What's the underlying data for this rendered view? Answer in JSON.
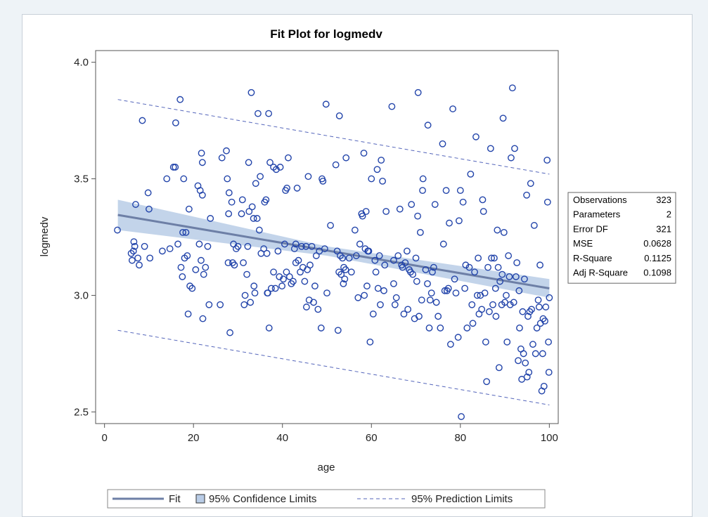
{
  "chart_data": {
    "type": "scatter",
    "title": "Fit Plot for logmedv",
    "xlabel": "age",
    "ylabel": "logmedv",
    "xlim": [
      -2,
      102
    ],
    "ylim": [
      2.45,
      4.05
    ],
    "x_ticks": [
      0,
      20,
      40,
      60,
      80,
      100
    ],
    "y_ticks": [
      2.5,
      3.0,
      3.5,
      4.0
    ],
    "x_tick_labels": [
      "0",
      "20",
      "40",
      "60",
      "80",
      "100"
    ],
    "y_tick_labels": [
      "2.5",
      "3.0",
      "3.5",
      "4.0"
    ],
    "grid": false,
    "colors": {
      "points": "#2244aa",
      "fit": "#6d7fa6",
      "confidence_band": "#b9cce6",
      "prediction": "#5566bb"
    },
    "fit_line": {
      "x": [
        3,
        100
      ],
      "y": [
        3.345,
        3.03
      ]
    },
    "confidence_band": {
      "x": [
        3,
        50,
        100
      ],
      "lower": [
        3.28,
        3.17,
        2.99
      ],
      "upper": [
        3.41,
        3.21,
        3.07
      ]
    },
    "prediction_limits": {
      "x": [
        3,
        100
      ],
      "lower": [
        2.85,
        2.53
      ],
      "upper": [
        3.84,
        3.52
      ]
    },
    "points": [
      [
        2.9,
        3.28
      ],
      [
        6,
        3.18
      ],
      [
        6.2,
        3.15
      ],
      [
        6.5,
        3.19
      ],
      [
        6.6,
        3.23
      ],
      [
        6.8,
        3.21
      ],
      [
        7,
        3.39
      ],
      [
        7.5,
        3.16
      ],
      [
        7.8,
        3.13
      ],
      [
        8.5,
        3.75
      ],
      [
        9,
        3.21
      ],
      [
        9.8,
        3.44
      ],
      [
        10,
        3.37
      ],
      [
        10.2,
        3.16
      ],
      [
        13,
        3.19
      ],
      [
        14,
        3.5
      ],
      [
        14.7,
        3.2
      ],
      [
        15.5,
        3.55
      ],
      [
        15.9,
        3.55
      ],
      [
        16,
        3.74
      ],
      [
        16.5,
        3.22
      ],
      [
        17,
        3.84
      ],
      [
        17.2,
        3.12
      ],
      [
        17.5,
        3.08
      ],
      [
        17.6,
        3.27
      ],
      [
        17.8,
        3.5
      ],
      [
        18,
        3.16
      ],
      [
        18.3,
        3.27
      ],
      [
        18.6,
        3.17
      ],
      [
        18.8,
        2.92
      ],
      [
        19,
        3.37
      ],
      [
        19.2,
        3.04
      ],
      [
        19.7,
        3.03
      ],
      [
        20.5,
        3.11
      ],
      [
        21,
        3.47
      ],
      [
        21.3,
        3.22
      ],
      [
        21.5,
        3.45
      ],
      [
        21.7,
        3.15
      ],
      [
        21.8,
        3.61
      ],
      [
        22,
        3.57
      ],
      [
        22,
        3.43
      ],
      [
        22.1,
        2.9
      ],
      [
        22.3,
        3.09
      ],
      [
        22.7,
        3.12
      ],
      [
        23.2,
        3.21
      ],
      [
        23.5,
        2.96
      ],
      [
        23.8,
        3.33
      ],
      [
        26,
        2.96
      ],
      [
        26.4,
        3.59
      ],
      [
        27.4,
        3.62
      ],
      [
        27.6,
        3.5
      ],
      [
        27.8,
        3.14
      ],
      [
        27.9,
        3.35
      ],
      [
        28,
        3.44
      ],
      [
        28.2,
        2.84
      ],
      [
        28.6,
        3.4
      ],
      [
        28.8,
        3.14
      ],
      [
        29,
        3.22
      ],
      [
        29.2,
        3.13
      ],
      [
        29.6,
        3.2
      ],
      [
        30,
        3.21
      ],
      [
        30.8,
        3.35
      ],
      [
        31,
        3.41
      ],
      [
        31.2,
        3.14
      ],
      [
        31.4,
        2.96
      ],
      [
        31.6,
        3.0
      ],
      [
        32,
        3.09
      ],
      [
        32.2,
        3.21
      ],
      [
        32.4,
        3.57
      ],
      [
        32.5,
        3.36
      ],
      [
        32.8,
        2.97
      ],
      [
        33,
        3.87
      ],
      [
        33.2,
        3.38
      ],
      [
        33.5,
        3.33
      ],
      [
        33.6,
        3.04
      ],
      [
        33.8,
        3.01
      ],
      [
        34,
        3.48
      ],
      [
        34.3,
        3.33
      ],
      [
        34.5,
        3.78
      ],
      [
        34.8,
        3.28
      ],
      [
        35,
        3.51
      ],
      [
        35.2,
        3.18
      ],
      [
        35.8,
        3.2
      ],
      [
        36,
        3.4
      ],
      [
        36.3,
        3.41
      ],
      [
        36.5,
        3.18
      ],
      [
        36.6,
        3.01
      ],
      [
        36.7,
        3.01
      ],
      [
        36.9,
        3.78
      ],
      [
        37,
        2.86
      ],
      [
        37.2,
        3.57
      ],
      [
        37.5,
        3.03
      ],
      [
        38,
        3.55
      ],
      [
        38,
        3.1
      ],
      [
        38.4,
        3.03
      ],
      [
        38.6,
        3.54
      ],
      [
        39,
        3.19
      ],
      [
        39.3,
        3.08
      ],
      [
        39.5,
        3.55
      ],
      [
        39.9,
        3.04
      ],
      [
        40.2,
        3.07
      ],
      [
        40.5,
        3.22
      ],
      [
        40.7,
        3.45
      ],
      [
        40.9,
        3.1
      ],
      [
        41,
        3.46
      ],
      [
        41.3,
        3.59
      ],
      [
        41.6,
        3.08
      ],
      [
        42,
        3.05
      ],
      [
        42.4,
        3.06
      ],
      [
        42.7,
        3.2
      ],
      [
        43,
        3.14
      ],
      [
        43,
        3.22
      ],
      [
        43.3,
        3.46
      ],
      [
        43.6,
        3.15
      ],
      [
        44,
        3.1
      ],
      [
        44.3,
        3.21
      ],
      [
        44.6,
        3.12
      ],
      [
        45,
        3.06
      ],
      [
        45.3,
        3.21
      ],
      [
        45.4,
        2.95
      ],
      [
        45.6,
        3.11
      ],
      [
        45.8,
        3.51
      ],
      [
        46,
        2.98
      ],
      [
        46.2,
        3.13
      ],
      [
        46.6,
        3.21
      ],
      [
        47,
        2.97
      ],
      [
        47.3,
        3.04
      ],
      [
        47.6,
        3.17
      ],
      [
        48,
        2.94
      ],
      [
        48.3,
        3.19
      ],
      [
        48.7,
        2.86
      ],
      [
        48.9,
        3.5
      ],
      [
        49.1,
        3.49
      ],
      [
        49.5,
        3.2
      ],
      [
        49.8,
        3.82
      ],
      [
        50,
        3.01
      ],
      [
        50.8,
        3.3
      ],
      [
        52,
        3.56
      ],
      [
        52.3,
        3.19
      ],
      [
        52.5,
        2.85
      ],
      [
        52.7,
        3.1
      ],
      [
        52.8,
        3.77
      ],
      [
        53,
        3.17
      ],
      [
        53.2,
        3.09
      ],
      [
        53.5,
        3.16
      ],
      [
        53.7,
        3.05
      ],
      [
        53.8,
        3.12
      ],
      [
        54,
        3.07
      ],
      [
        54.2,
        3.11
      ],
      [
        54.3,
        3.59
      ],
      [
        55,
        3.16
      ],
      [
        55.5,
        3.1
      ],
      [
        56.3,
        3.28
      ],
      [
        56.6,
        3.17
      ],
      [
        57,
        2.99
      ],
      [
        57.4,
        3.22
      ],
      [
        57.8,
        3.35
      ],
      [
        58,
        3.34
      ],
      [
        58.3,
        3.61
      ],
      [
        58.4,
        3.0
      ],
      [
        58.6,
        3.2
      ],
      [
        58.8,
        3.36
      ],
      [
        59,
        3.04
      ],
      [
        59.2,
        3.19
      ],
      [
        59.4,
        3.19
      ],
      [
        59.7,
        2.8
      ],
      [
        60,
        3.5
      ],
      [
        60.4,
        2.92
      ],
      [
        60.8,
        3.15
      ],
      [
        61,
        3.1
      ],
      [
        61.3,
        3.54
      ],
      [
        61.5,
        3.03
      ],
      [
        61.8,
        3.17
      ],
      [
        62,
        2.96
      ],
      [
        62.2,
        3.58
      ],
      [
        62.5,
        3.49
      ],
      [
        62.8,
        3.02
      ],
      [
        63,
        3.13
      ],
      [
        63.3,
        3.36
      ],
      [
        64.6,
        3.81
      ],
      [
        65,
        3.15
      ],
      [
        65,
        3.05
      ],
      [
        65.3,
        2.96
      ],
      [
        65.6,
        2.99
      ],
      [
        66,
        3.17
      ],
      [
        66.4,
        3.37
      ],
      [
        66.8,
        3.13
      ],
      [
        67,
        3.12
      ],
      [
        67.3,
        2.92
      ],
      [
        67.6,
        3.14
      ],
      [
        68,
        3.19
      ],
      [
        68.2,
        2.94
      ],
      [
        68.5,
        3.11
      ],
      [
        68.8,
        3.1
      ],
      [
        69,
        3.39
      ],
      [
        69.3,
        3.09
      ],
      [
        69.7,
        2.9
      ],
      [
        70,
        3.16
      ],
      [
        70.2,
        3.06
      ],
      [
        70.4,
        3.34
      ],
      [
        70.5,
        3.87
      ],
      [
        70.7,
        2.91
      ],
      [
        71,
        3.27
      ],
      [
        71.3,
        2.98
      ],
      [
        71.5,
        3.45
      ],
      [
        71.6,
        3.5
      ],
      [
        72.2,
        3.11
      ],
      [
        72.6,
        3.05
      ],
      [
        72.7,
        3.73
      ],
      [
        73,
        2.86
      ],
      [
        73.2,
        2.98
      ],
      [
        73.5,
        3.01
      ],
      [
        73.7,
        3.1
      ],
      [
        74,
        3.12
      ],
      [
        74.3,
        3.39
      ],
      [
        74.6,
        2.97
      ],
      [
        75,
        2.91
      ],
      [
        75.5,
        2.86
      ],
      [
        76,
        3.65
      ],
      [
        76.2,
        3.22
      ],
      [
        76.5,
        3.02
      ],
      [
        76.8,
        3.45
      ],
      [
        77,
        3.02
      ],
      [
        77.3,
        3.03
      ],
      [
        77.5,
        3.31
      ],
      [
        77.8,
        2.79
      ],
      [
        78.3,
        3.8
      ],
      [
        78.7,
        3.07
      ],
      [
        79,
        3.01
      ],
      [
        79.5,
        2.82
      ],
      [
        79.7,
        3.32
      ],
      [
        80,
        3.45
      ],
      [
        80.2,
        2.48
      ],
      [
        80.6,
        3.4
      ],
      [
        81,
        3.03
      ],
      [
        81.2,
        3.13
      ],
      [
        81.5,
        2.86
      ],
      [
        82,
        3.12
      ],
      [
        82.3,
        3.52
      ],
      [
        82.6,
        2.96
      ],
      [
        82.8,
        2.88
      ],
      [
        83.2,
        3.1
      ],
      [
        83.5,
        3.68
      ],
      [
        83.8,
        3.0
      ],
      [
        84,
        3.16
      ],
      [
        84.2,
        2.92
      ],
      [
        84.5,
        3.0
      ],
      [
        84.8,
        2.94
      ],
      [
        85,
        3.41
      ],
      [
        85.2,
        3.36
      ],
      [
        85.5,
        3.01
      ],
      [
        85.7,
        2.8
      ],
      [
        85.9,
        2.63
      ],
      [
        86.2,
        3.12
      ],
      [
        86.5,
        2.93
      ],
      [
        86.8,
        3.63
      ],
      [
        87,
        3.16
      ],
      [
        87.3,
        2.96
      ],
      [
        87.6,
        3.16
      ],
      [
        87.9,
        3.03
      ],
      [
        88,
        2.91
      ],
      [
        88.3,
        3.28
      ],
      [
        88.5,
        3.12
      ],
      [
        88.7,
        2.69
      ],
      [
        88.9,
        3.06
      ],
      [
        89.3,
        2.96
      ],
      [
        89.4,
        3.09
      ],
      [
        89.6,
        3.76
      ],
      [
        89.8,
        3.27
      ],
      [
        90,
        2.97
      ],
      [
        90.3,
        3.0
      ],
      [
        90.5,
        2.8
      ],
      [
        90.8,
        3.17
      ],
      [
        91,
        3.08
      ],
      [
        91.2,
        2.96
      ],
      [
        91.4,
        3.59
      ],
      [
        91.7,
        3.89
      ],
      [
        92,
        2.97
      ],
      [
        92.2,
        3.63
      ],
      [
        92.5,
        3.08
      ],
      [
        92.7,
        3.14
      ],
      [
        93,
        2.72
      ],
      [
        93.2,
        3.02
      ],
      [
        93.3,
        2.86
      ],
      [
        93.6,
        2.77
      ],
      [
        93.8,
        2.64
      ],
      [
        94,
        2.93
      ],
      [
        94.2,
        2.75
      ],
      [
        94.4,
        3.07
      ],
      [
        94.6,
        2.71
      ],
      [
        94.9,
        3.43
      ],
      [
        95,
        2.65
      ],
      [
        95.2,
        2.91
      ],
      [
        95.4,
        2.67
      ],
      [
        95.6,
        2.93
      ],
      [
        95.8,
        3.48
      ],
      [
        96,
        2.94
      ],
      [
        96.3,
        2.79
      ],
      [
        96.6,
        3.3
      ],
      [
        96.9,
        2.75
      ],
      [
        97.2,
        2.86
      ],
      [
        97.5,
        2.98
      ],
      [
        97.7,
        2.95
      ],
      [
        97.9,
        3.13
      ],
      [
        98,
        2.88
      ],
      [
        98.3,
        2.59
      ],
      [
        98.5,
        2.75
      ],
      [
        98.6,
        2.9
      ],
      [
        98.8,
        2.61
      ],
      [
        99,
        2.89
      ],
      [
        99.2,
        2.95
      ],
      [
        99.5,
        3.58
      ],
      [
        99.6,
        3.4
      ],
      [
        99.8,
        2.8
      ],
      [
        99.9,
        2.67
      ],
      [
        100,
        2.99
      ]
    ],
    "legend": {
      "position": "bottom",
      "items": [
        {
          "label": "Fit",
          "symbol": "line"
        },
        {
          "label": "95% Confidence Limits",
          "symbol": "box"
        },
        {
          "label": "95% Prediction Limits",
          "symbol": "dash"
        }
      ]
    },
    "stats_table": {
      "position": "right",
      "rows": [
        {
          "label": "Observations",
          "value": "323"
        },
        {
          "label": "Parameters",
          "value": "2"
        },
        {
          "label": "Error DF",
          "value": "321"
        },
        {
          "label": "MSE",
          "value": "0.0628"
        },
        {
          "label": "R-Square",
          "value": "0.1125"
        },
        {
          "label": "Adj R-Square",
          "value": "0.1098"
        }
      ]
    }
  }
}
